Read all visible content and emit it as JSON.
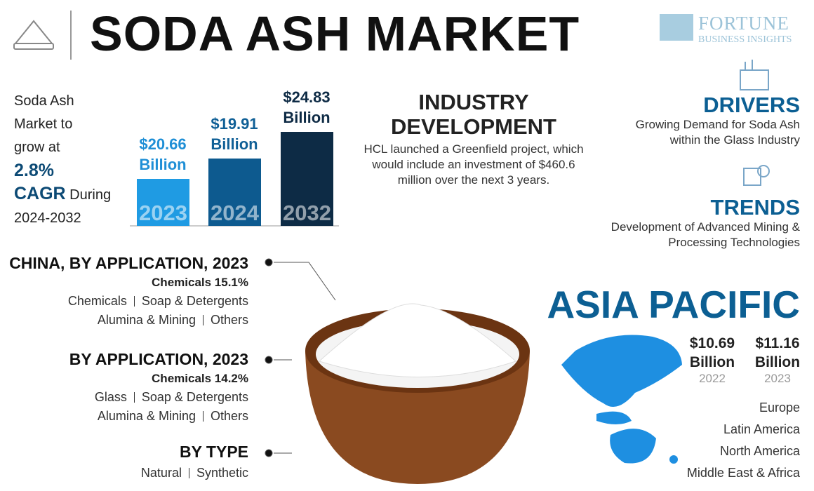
{
  "header": {
    "title": "SODA ASH MARKET",
    "logo": {
      "line1": "FORTUNE",
      "line2": "BUSINESS INSIGHTS"
    }
  },
  "growth": {
    "lines": [
      "Soda Ash",
      "Market to",
      "grow at"
    ],
    "rate": "2.8%",
    "cagr": "CAGR",
    "during": "During",
    "period": "2024-2032"
  },
  "bars": [
    {
      "value": "$20.66",
      "unit": "Billion",
      "year": "2023"
    },
    {
      "value": "$19.91",
      "unit": "Billion",
      "year": "2024"
    },
    {
      "value": "$24.83",
      "unit": "Billion",
      "year": "2032"
    }
  ],
  "industry": {
    "title": "INDUSTRY DEVELOPMENT",
    "text": "HCL launched a Greenfield project, which would include an investment of $460.6 million over the next 3 years."
  },
  "drivers": {
    "title": "DRIVERS",
    "text": "Growing Demand for Soda Ash within the Glass Industry"
  },
  "trends": {
    "title": "TRENDS",
    "text": "Development of Advanced Mining & Processing Technologies"
  },
  "segments": [
    {
      "title": "CHINA, BY APPLICATION, 2023",
      "highlight": "Chemicals 15.1%",
      "rows": [
        [
          "Chemicals",
          "Soap & Detergents"
        ],
        [
          "Alumina & Mining",
          "Others"
        ]
      ]
    },
    {
      "title": "BY APPLICATION, 2023",
      "highlight": "Chemicals 14.2%",
      "rows": [
        [
          "Glass",
          "Soap & Detergents"
        ],
        [
          "Alumina & Mining",
          "Others"
        ]
      ]
    },
    {
      "title": "BY TYPE",
      "rows": [
        [
          "Natural",
          "Synthetic"
        ]
      ]
    }
  ],
  "region": {
    "title": "ASIA PACIFIC",
    "stats": [
      {
        "value": "$10.69",
        "unit": "Billion",
        "year": "2022"
      },
      {
        "value": "$11.16",
        "unit": "Billion",
        "year": "2023"
      }
    ],
    "others": [
      "Europe",
      "Latin America",
      "North America",
      "Middle East & Africa"
    ]
  }
}
